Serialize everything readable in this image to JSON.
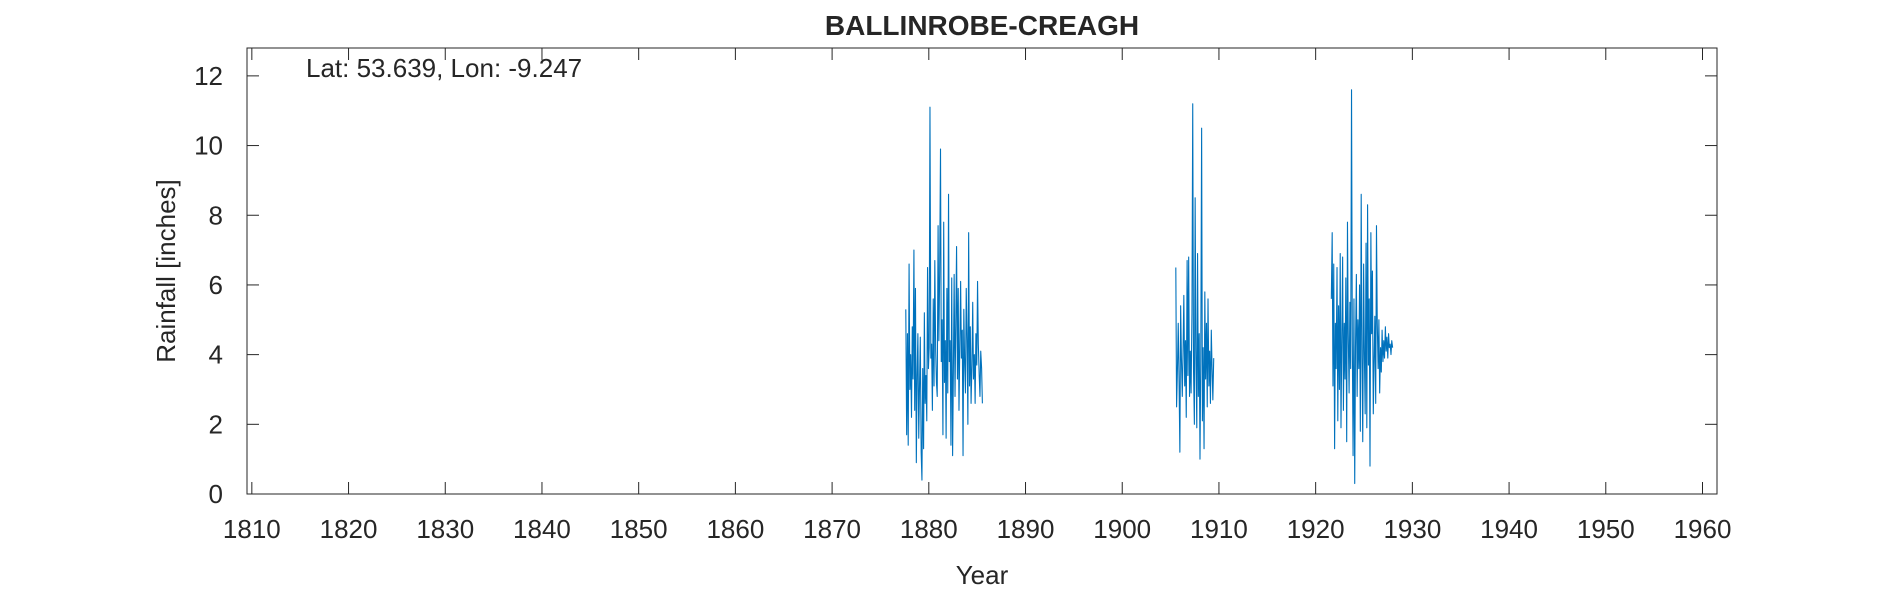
{
  "chart_data": {
    "type": "line",
    "title": "BALLINROBE-CREAGH",
    "annotation": "Lat: 53.639, Lon: -9.247",
    "xlabel": "Year",
    "ylabel": "Rainfall [inches]",
    "xlim": [
      1809.5,
      1961.5
    ],
    "ylim": [
      0,
      12.8
    ],
    "xticks": [
      1810,
      1820,
      1830,
      1840,
      1850,
      1860,
      1870,
      1880,
      1890,
      1900,
      1910,
      1920,
      1930,
      1940,
      1950,
      1960
    ],
    "yticks": [
      0,
      2,
      4,
      6,
      8,
      10,
      12
    ],
    "grid": false,
    "line_color": "#0072BD",
    "series": [
      {
        "x": [
          1877.62,
          1877.71,
          1877.79,
          1877.87,
          1877.96,
          1878.04,
          1878.12,
          1878.21,
          1878.29,
          1878.37,
          1878.46,
          1878.54,
          1878.62,
          1878.71,
          1878.79,
          1878.87,
          1878.96,
          1879.04,
          1879.12,
          1879.21,
          1879.29,
          1879.37,
          1879.46,
          1879.54,
          1879.62,
          1879.71,
          1879.79,
          1879.87,
          1879.96,
          1880.04,
          1880.12,
          1880.21,
          1880.29,
          1880.37,
          1880.46,
          1880.54,
          1880.62,
          1880.71,
          1880.79,
          1880.87,
          1880.96,
          1881.04,
          1881.12,
          1881.21,
          1881.29,
          1881.37,
          1881.46,
          1881.54,
          1881.62,
          1881.71,
          1881.79,
          1881.87,
          1881.96,
          1882.04,
          1882.12,
          1882.21,
          1882.29,
          1882.37,
          1882.46,
          1882.54,
          1882.62,
          1882.71,
          1882.79,
          1882.87,
          1882.96,
          1883.04,
          1883.12,
          1883.21,
          1883.29,
          1883.37,
          1883.46,
          1883.54,
          1883.62,
          1883.71,
          1883.79,
          1883.87,
          1883.96,
          1884.04,
          1884.12,
          1884.21,
          1884.29,
          1884.37,
          1884.46,
          1884.54,
          1884.62,
          1884.71,
          1884.79,
          1884.87,
          1884.96,
          1885.04,
          1885.12,
          1885.21,
          1885.29,
          1885.37,
          1885.46,
          1885.54
        ],
        "values": [
          5.3,
          1.7,
          4.6,
          1.4,
          6.6,
          3.0,
          4.0,
          2.2,
          4.8,
          3.3,
          7.0,
          2.4,
          5.9,
          0.9,
          3.4,
          4.6,
          1.6,
          3.1,
          4.5,
          1.2,
          0.4,
          3.6,
          1.3,
          5.2,
          2.6,
          3.4,
          2.1,
          6.5,
          3.6,
          4.2,
          11.1,
          3.9,
          4.3,
          2.4,
          5.6,
          3.1,
          6.7,
          4.1,
          3.2,
          2.8,
          7.7,
          4.4,
          6.3,
          9.9,
          3.8,
          5.0,
          1.7,
          7.8,
          3.2,
          4.4,
          1.6,
          5.9,
          2.9,
          8.6,
          3.8,
          4.4,
          1.4,
          6.2,
          1.1,
          3.5,
          6.3,
          2.8,
          4.9,
          7.1,
          3.3,
          5.9,
          2.4,
          4.4,
          6.1,
          3.9,
          4.7,
          1.1,
          5.3,
          3.7,
          2.9,
          5.9,
          4.4,
          2.0,
          7.5,
          3.1,
          4.8,
          2.6,
          3.7,
          5.5,
          3.3,
          4.0,
          2.6,
          4.6,
          3.7,
          6.1,
          4.3,
          3.4,
          2.8,
          4.1,
          3.6,
          2.6
        ]
      },
      {
        "x": [
          1905.54,
          1905.62,
          1905.71,
          1905.79,
          1905.87,
          1905.96,
          1906.04,
          1906.12,
          1906.21,
          1906.29,
          1906.37,
          1906.46,
          1906.54,
          1906.62,
          1906.71,
          1906.79,
          1906.87,
          1906.96,
          1907.04,
          1907.12,
          1907.21,
          1907.29,
          1907.37,
          1907.46,
          1907.54,
          1907.62,
          1907.71,
          1907.79,
          1907.87,
          1907.96,
          1908.04,
          1908.12,
          1908.21,
          1908.29,
          1908.37,
          1908.46,
          1908.54,
          1908.62,
          1908.71,
          1908.79,
          1908.87,
          1908.96,
          1909.04,
          1909.12,
          1909.21,
          1909.29,
          1909.37,
          1909.46
        ],
        "values": [
          6.5,
          2.5,
          3.6,
          4.9,
          3.4,
          1.2,
          5.4,
          3.9,
          2.8,
          4.1,
          5.7,
          3.1,
          4.4,
          2.2,
          6.7,
          3.4,
          6.8,
          2.8,
          4.1,
          2.9,
          5.2,
          11.2,
          3.6,
          2.0,
          8.5,
          4.1,
          1.9,
          6.9,
          2.8,
          4.6,
          1.0,
          3.8,
          10.5,
          2.1,
          4.2,
          1.3,
          5.8,
          3.3,
          4.9,
          2.5,
          5.6,
          3.1,
          4.1,
          2.6,
          4.7,
          3.6,
          2.7,
          3.9
        ]
      },
      {
        "x": [
          1921.62,
          1921.71,
          1921.79,
          1921.87,
          1921.96,
          1922.04,
          1922.12,
          1922.21,
          1922.29,
          1922.37,
          1922.46,
          1922.54,
          1922.62,
          1922.71,
          1922.79,
          1922.87,
          1922.96,
          1923.04,
          1923.12,
          1923.21,
          1923.29,
          1923.37,
          1923.46,
          1923.54,
          1923.62,
          1923.71,
          1923.79,
          1923.87,
          1923.96,
          1924.04,
          1924.12,
          1924.21,
          1924.29,
          1924.37,
          1924.46,
          1924.54,
          1924.62,
          1924.71,
          1924.79,
          1924.87,
          1924.96,
          1925.04,
          1925.12,
          1925.21,
          1925.29,
          1925.37,
          1925.46,
          1925.54,
          1925.62,
          1925.71,
          1925.79,
          1925.87,
          1925.96,
          1926.04,
          1926.12,
          1926.21,
          1926.29,
          1926.37,
          1926.46,
          1926.54,
          1926.62,
          1926.71,
          1926.79,
          1926.87,
          1926.96,
          1927.04,
          1927.12,
          1927.21,
          1927.29,
          1927.37,
          1927.46,
          1927.54,
          1927.62,
          1927.71,
          1927.79,
          1927.87,
          1927.96
        ],
        "values": [
          5.6,
          7.5,
          3.1,
          6.6,
          1.3,
          4.9,
          3.6,
          6.5,
          2.1,
          5.4,
          3.0,
          6.9,
          1.9,
          4.6,
          6.8,
          2.4,
          4.9,
          3.3,
          6.2,
          1.5,
          7.8,
          4.6,
          2.9,
          5.5,
          3.6,
          11.6,
          4.4,
          1.1,
          5.6,
          0.3,
          4.2,
          6.3,
          2.8,
          5.0,
          3.6,
          6.0,
          1.8,
          8.6,
          3.9,
          1.5,
          6.6,
          4.0,
          2.3,
          7.2,
          1.9,
          8.3,
          3.7,
          5.6,
          0.8,
          7.5,
          4.6,
          6.4,
          2.3,
          3.8,
          5.1,
          2.6,
          7.7,
          4.9,
          3.6,
          5.0,
          2.9,
          4.2,
          3.5,
          4.7,
          3.8,
          4.4,
          3.9,
          4.8,
          4.1,
          4.5,
          3.9,
          4.6,
          4.2,
          4.3,
          4.0,
          4.4,
          4.2
        ]
      }
    ]
  }
}
